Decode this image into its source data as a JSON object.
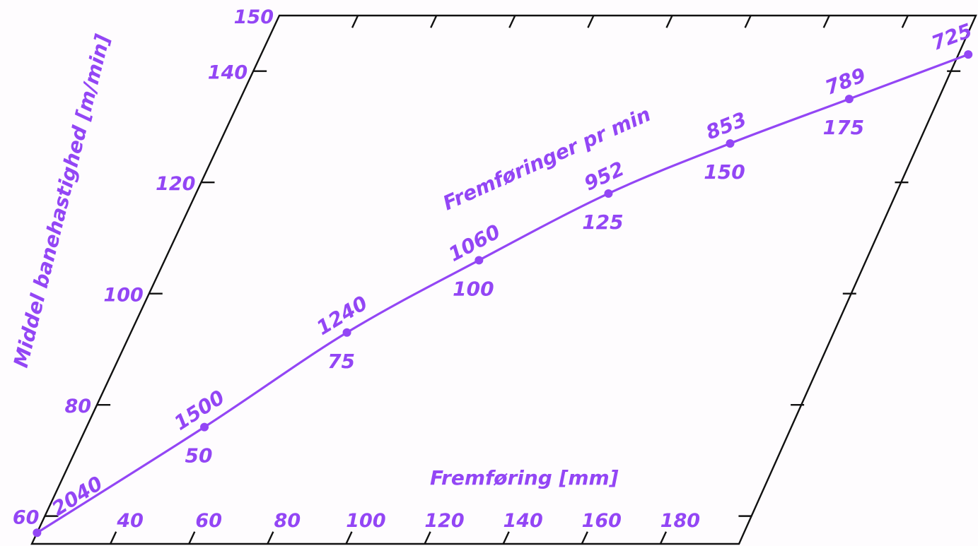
{
  "chart_data": {
    "type": "line",
    "title": "",
    "accent_color": "#9346f5",
    "frame_color": "#111111",
    "grid": false,
    "xlabel": "Fremføring [mm]",
    "ylabel": "Middel banehastighed [m/min]",
    "curve_label": "Fremføringer pr min",
    "xlim": [
      20,
      200
    ],
    "ylim": [
      55,
      150
    ],
    "x_ticks": [
      40,
      60,
      80,
      100,
      120,
      140,
      160,
      180
    ],
    "y_ticks": [
      60,
      80,
      100,
      120,
      140,
      150
    ],
    "series": [
      {
        "x": [
          20,
          50,
          75,
          100,
          125,
          150,
          175,
          200
        ],
        "y": [
          57,
          76,
          93,
          106,
          118,
          127,
          135,
          143
        ],
        "labels_above": [
          "2040",
          "1500",
          "1240",
          "1060",
          "952",
          "853",
          "789",
          "725"
        ],
        "labels_below": [
          "",
          "50",
          "75",
          "100",
          "125",
          "150",
          "175",
          ""
        ]
      }
    ]
  }
}
